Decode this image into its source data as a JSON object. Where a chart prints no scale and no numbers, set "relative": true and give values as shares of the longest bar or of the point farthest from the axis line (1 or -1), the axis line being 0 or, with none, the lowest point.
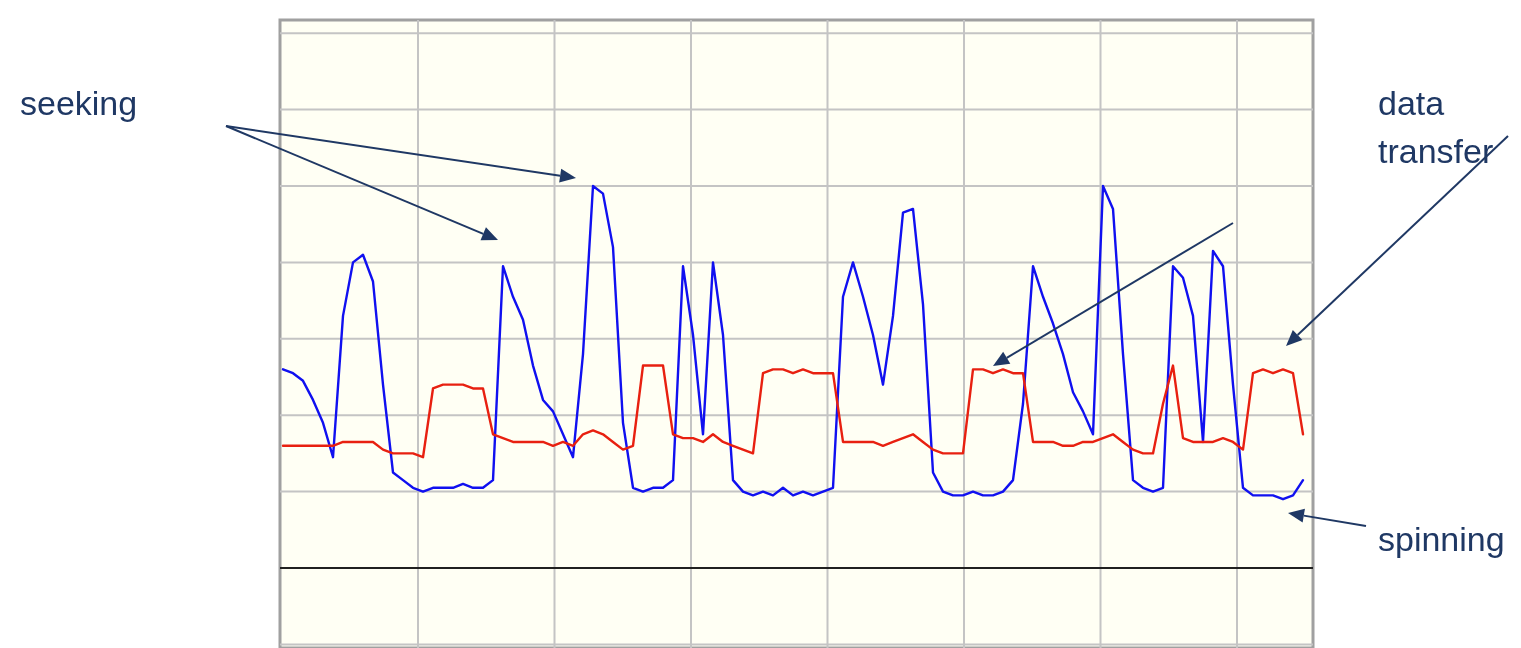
{
  "chart_data": {
    "type": "line",
    "relative": true,
    "grid": true,
    "marker": "none",
    "line_style": "solid",
    "categories": [
      null,
      null,
      null,
      null,
      null,
      null,
      null,
      null,
      null,
      null,
      null,
      null,
      null,
      null,
      null,
      null,
      null,
      null,
      null,
      null,
      null,
      null,
      null,
      null,
      null,
      null,
      null,
      null,
      null,
      null,
      null,
      null,
      null,
      null,
      null,
      null,
      null,
      null,
      null,
      null,
      null,
      null,
      null,
      null,
      null,
      null,
      null,
      null,
      null,
      null,
      null,
      null,
      null,
      null,
      null,
      null,
      null,
      null,
      null,
      null,
      null,
      null,
      null,
      null,
      null,
      null,
      null,
      null,
      null,
      null,
      null,
      null,
      null,
      null,
      null,
      null,
      null,
      null,
      null,
      null,
      null,
      null,
      null,
      null,
      null,
      null,
      null,
      null,
      null,
      null,
      null,
      null,
      null,
      null,
      null,
      null,
      null,
      null,
      null,
      null,
      null,
      null,
      null
    ],
    "series": [
      {
        "color": "#1010f0",
        "values": [
          0.52,
          0.51,
          0.49,
          0.44,
          0.38,
          0.29,
          0.66,
          0.8,
          0.82,
          0.75,
          0.48,
          0.25,
          0.23,
          0.21,
          0.2,
          0.21,
          0.21,
          0.21,
          0.22,
          0.21,
          0.21,
          0.23,
          0.79,
          0.71,
          0.65,
          0.53,
          0.44,
          0.41,
          0.35,
          0.29,
          0.56,
          1.0,
          0.98,
          0.84,
          0.38,
          0.21,
          0.2,
          0.21,
          0.21,
          0.23,
          0.79,
          0.61,
          0.35,
          0.8,
          0.61,
          0.23,
          0.2,
          0.19,
          0.2,
          0.19,
          0.21,
          0.19,
          0.2,
          0.19,
          0.2,
          0.21,
          0.71,
          0.8,
          0.71,
          0.61,
          0.48,
          0.66,
          0.93,
          0.94,
          0.69,
          0.25,
          0.2,
          0.19,
          0.19,
          0.2,
          0.19,
          0.19,
          0.2,
          0.23,
          0.43,
          0.79,
          0.71,
          0.64,
          0.56,
          0.46,
          0.41,
          0.35,
          1.0,
          0.94,
          0.56,
          0.23,
          0.21,
          0.2,
          0.21,
          0.79,
          0.76,
          0.66,
          0.33,
          0.83,
          0.79,
          0.48,
          0.21,
          0.19,
          0.19,
          0.19,
          0.18,
          0.19,
          0.23
        ]
      },
      {
        "color": "#e82010",
        "values": [
          0.32,
          0.32,
          0.32,
          0.32,
          0.32,
          0.32,
          0.33,
          0.33,
          0.33,
          0.33,
          0.31,
          0.3,
          0.3,
          0.3,
          0.29,
          0.47,
          0.48,
          0.48,
          0.48,
          0.47,
          0.47,
          0.35,
          0.34,
          0.33,
          0.33,
          0.33,
          0.33,
          0.32,
          0.33,
          0.32,
          0.35,
          0.36,
          0.35,
          0.33,
          0.31,
          0.32,
          0.53,
          0.53,
          0.53,
          0.35,
          0.34,
          0.34,
          0.33,
          0.35,
          0.33,
          0.32,
          0.31,
          0.3,
          0.51,
          0.52,
          0.52,
          0.51,
          0.52,
          0.51,
          0.51,
          0.51,
          0.33,
          0.33,
          0.33,
          0.33,
          0.32,
          0.33,
          0.34,
          0.35,
          0.33,
          0.31,
          0.3,
          0.3,
          0.3,
          0.52,
          0.52,
          0.51,
          0.52,
          0.51,
          0.51,
          0.33,
          0.33,
          0.33,
          0.32,
          0.32,
          0.33,
          0.33,
          0.34,
          0.35,
          0.33,
          0.31,
          0.3,
          0.3,
          0.43,
          0.53,
          0.34,
          0.33,
          0.33,
          0.33,
          0.34,
          0.33,
          0.31,
          0.51,
          0.52,
          0.51,
          0.52,
          0.51,
          0.35
        ]
      }
    ],
    "annotations": [
      "seeking",
      "data transfer",
      "spinning"
    ]
  }
}
